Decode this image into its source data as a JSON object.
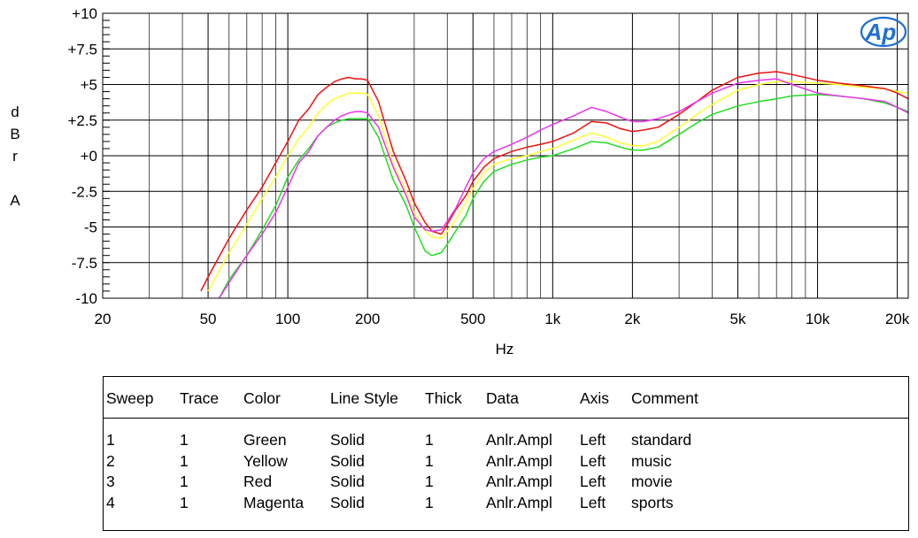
{
  "chart_data": {
    "type": "line",
    "xscale": "log",
    "xlim": [
      20,
      22000
    ],
    "ylim": [
      -10,
      10
    ],
    "xlabel": "Hz",
    "ylabel": [
      "d",
      "B",
      "r",
      "A"
    ],
    "x_ticks": [
      {
        "value": 20,
        "label": "20"
      },
      {
        "value": 50,
        "label": "50"
      },
      {
        "value": 100,
        "label": "100"
      },
      {
        "value": 200,
        "label": "200"
      },
      {
        "value": 500,
        "label": "500"
      },
      {
        "value": 1000,
        "label": "1k"
      },
      {
        "value": 2000,
        "label": "2k"
      },
      {
        "value": 5000,
        "label": "5k"
      },
      {
        "value": 10000,
        "label": "10k"
      },
      {
        "value": 20000,
        "label": "20k"
      }
    ],
    "y_ticks": [
      {
        "value": 10,
        "label": "+10"
      },
      {
        "value": 7.5,
        "label": "+7.5"
      },
      {
        "value": 5,
        "label": "+5"
      },
      {
        "value": 2.5,
        "label": "+2.5"
      },
      {
        "value": 0,
        "label": "+0"
      },
      {
        "value": -2.5,
        "label": "-2.5"
      },
      {
        "value": -5,
        "label": "-5"
      },
      {
        "value": -7.5,
        "label": "-7.5"
      },
      {
        "value": -10,
        "label": "-10"
      }
    ],
    "grid": true,
    "series": [
      {
        "color": "#22dd22",
        "x": [
          55,
          60,
          70,
          80,
          90,
          100,
          110,
          120,
          130,
          140,
          150,
          160,
          170,
          180,
          190,
          200,
          220,
          250,
          280,
          300,
          330,
          350,
          380,
          400,
          430,
          470,
          500,
          550,
          600,
          700,
          800,
          900,
          1000,
          1200,
          1400,
          1600,
          1800,
          2000,
          2200,
          2500,
          3000,
          3500,
          4000,
          5000,
          6000,
          7000,
          8000,
          10000,
          12000,
          15000,
          18000,
          20000,
          22000
        ],
        "y": [
          -10,
          -8.7,
          -7,
          -5.2,
          -3.5,
          -1.5,
          -0.3,
          0.5,
          1.4,
          2,
          2.3,
          2.5,
          2.6,
          2.6,
          2.6,
          2.6,
          1.3,
          -1.7,
          -3.5,
          -5,
          -6.7,
          -7,
          -6.8,
          -6.2,
          -5.3,
          -4.2,
          -3,
          -1.8,
          -1.1,
          -0.6,
          -0.3,
          -0.1,
          0,
          0.5,
          1,
          0.9,
          0.6,
          0.4,
          0.4,
          0.6,
          1.5,
          2.3,
          2.9,
          3.5,
          3.8,
          4,
          4.2,
          4.3,
          4.2,
          4,
          3.7,
          3.4,
          3.1
        ]
      },
      {
        "color": "#ffff33",
        "x": [
          50,
          60,
          70,
          80,
          90,
          100,
          110,
          120,
          130,
          140,
          150,
          160,
          170,
          180,
          190,
          200,
          220,
          250,
          280,
          300,
          330,
          350,
          380,
          400,
          430,
          470,
          500,
          550,
          600,
          700,
          800,
          900,
          1000,
          1200,
          1400,
          1600,
          1800,
          2000,
          2200,
          2500,
          3000,
          3500,
          4000,
          5000,
          6000,
          7000,
          8000,
          10000,
          12000,
          15000,
          18000,
          20000,
          22000
        ],
        "y": [
          -9.5,
          -6.8,
          -4.8,
          -3,
          -1.5,
          0,
          1.2,
          2,
          3,
          3.6,
          4,
          4.2,
          4.4,
          4.4,
          4.4,
          4.3,
          2.8,
          -0.6,
          -2.5,
          -4,
          -5.3,
          -5.7,
          -5.8,
          -5.3,
          -4.5,
          -3.3,
          -2.3,
          -1.2,
          -0.6,
          -0.2,
          0,
          0.3,
          0.5,
          1.1,
          1.6,
          1.3,
          0.9,
          0.7,
          0.7,
          1,
          2,
          2.9,
          3.6,
          4.6,
          5,
          5.2,
          5.2,
          5.1,
          5,
          4.8,
          4.7,
          4.5,
          4.4
        ]
      },
      {
        "color": "#ee1111",
        "x": [
          47,
          50,
          60,
          70,
          80,
          90,
          100,
          110,
          120,
          130,
          140,
          150,
          160,
          170,
          180,
          190,
          200,
          220,
          250,
          280,
          300,
          330,
          350,
          380,
          400,
          430,
          470,
          500,
          550,
          600,
          700,
          800,
          900,
          1000,
          1200,
          1400,
          1600,
          1800,
          2000,
          2200,
          2500,
          3000,
          3500,
          4000,
          5000,
          6000,
          7000,
          8000,
          10000,
          12000,
          15000,
          18000,
          20000,
          22000
        ],
        "y": [
          -9.5,
          -8.5,
          -5.8,
          -3.8,
          -2.2,
          -0.5,
          1,
          2.5,
          3.3,
          4.3,
          4.8,
          5.2,
          5.4,
          5.5,
          5.4,
          5.4,
          5.3,
          3.8,
          0.3,
          -1.8,
          -3.3,
          -4.7,
          -5.3,
          -5.5,
          -4.8,
          -3.8,
          -2.8,
          -1.8,
          -0.8,
          -0.2,
          0.3,
          0.6,
          0.8,
          1,
          1.6,
          2.4,
          2.3,
          1.9,
          1.7,
          1.8,
          2,
          2.9,
          3.8,
          4.6,
          5.5,
          5.8,
          5.9,
          5.7,
          5.3,
          5.1,
          4.9,
          4.7,
          4.4,
          4
        ]
      },
      {
        "color": "#ee33ee",
        "x": [
          55,
          60,
          70,
          80,
          90,
          100,
          110,
          120,
          130,
          140,
          150,
          160,
          170,
          180,
          190,
          200,
          220,
          250,
          280,
          300,
          330,
          350,
          380,
          400,
          430,
          470,
          500,
          550,
          600,
          700,
          800,
          900,
          1000,
          1200,
          1400,
          1600,
          1800,
          2000,
          2200,
          2500,
          3000,
          3500,
          4000,
          5000,
          6000,
          7000,
          8000,
          10000,
          12000,
          15000,
          18000,
          20000,
          22000
        ],
        "y": [
          -10,
          -8.9,
          -7,
          -5.5,
          -4,
          -2.2,
          -0.5,
          0.3,
          1.4,
          2,
          2.5,
          2.8,
          3,
          3.1,
          3.1,
          3,
          2,
          -0.8,
          -2.8,
          -4.3,
          -5.2,
          -5.3,
          -5.2,
          -4.6,
          -3.7,
          -2.2,
          -1.2,
          -0.2,
          0.3,
          0.8,
          1.3,
          1.8,
          2.2,
          2.8,
          3.4,
          3.1,
          2.7,
          2.4,
          2.4,
          2.6,
          3.1,
          3.8,
          4.4,
          5.1,
          5.3,
          5.4,
          5,
          4.4,
          4.2,
          4,
          3.8,
          3.4,
          3
        ]
      }
    ]
  },
  "legend_table": {
    "headers": {
      "sweep": "Sweep",
      "trace": "Trace",
      "color": "Color",
      "line_style": "Line Style",
      "thick": "Thick",
      "data": "Data",
      "axis": "Axis",
      "comment": "Comment"
    },
    "rows": [
      {
        "sweep": "1",
        "trace": "1",
        "color": "Green",
        "line_style": "Solid",
        "thick": "1",
        "data": "Anlr.Ampl",
        "axis": "Left",
        "comment": "standard"
      },
      {
        "sweep": "2",
        "trace": "1",
        "color": "Yellow",
        "line_style": "Solid",
        "thick": "1",
        "data": "Anlr.Ampl",
        "axis": "Left",
        "comment": "music"
      },
      {
        "sweep": "3",
        "trace": "1",
        "color": "Red",
        "line_style": "Solid",
        "thick": "1",
        "data": "Anlr.Ampl",
        "axis": "Left",
        "comment": "movie"
      },
      {
        "sweep": "4",
        "trace": "1",
        "color": "Magenta",
        "line_style": "Solid",
        "thick": "1",
        "data": "Anlr.Ampl",
        "axis": "Left",
        "comment": "sports"
      }
    ]
  },
  "logo": {
    "text": "Ap",
    "color": "#1f6fd0",
    "icon": "audio-precision-logo-icon"
  }
}
